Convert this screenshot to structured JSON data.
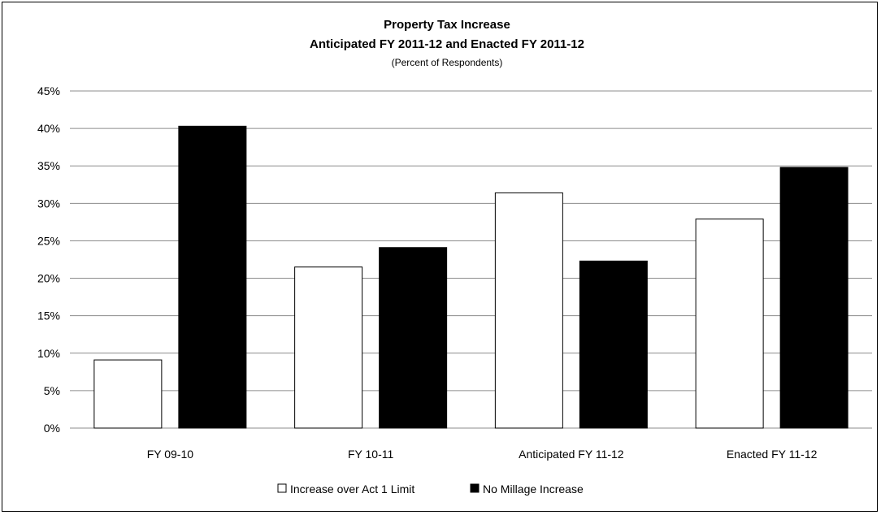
{
  "chart_data": {
    "type": "bar",
    "title": "Property Tax Increase",
    "subtitle": "Anticipated FY 2011-12 and Enacted FY 2011-12",
    "subtitle2": "(Percent of Respondents)",
    "categories": [
      "FY 09-10",
      "FY 10-11",
      "Anticipated FY 11-12",
      "Enacted FY 11-12"
    ],
    "series": [
      {
        "name": "Increase over Act 1 Limit",
        "color": "#ffffff",
        "values": [
          9.1,
          21.5,
          31.4,
          27.9
        ]
      },
      {
        "name": "No Millage Increase",
        "color": "#000000",
        "values": [
          40.3,
          24.1,
          22.3,
          34.8
        ]
      }
    ],
    "ylim": [
      0,
      45
    ],
    "yticks": [
      0,
      5,
      10,
      15,
      20,
      25,
      30,
      35,
      40,
      45
    ],
    "ytick_labels": [
      "0%",
      "5%",
      "10%",
      "15%",
      "20%",
      "25%",
      "30%",
      "35%",
      "40%",
      "45%"
    ],
    "grid": true,
    "legend_position": "bottom"
  }
}
